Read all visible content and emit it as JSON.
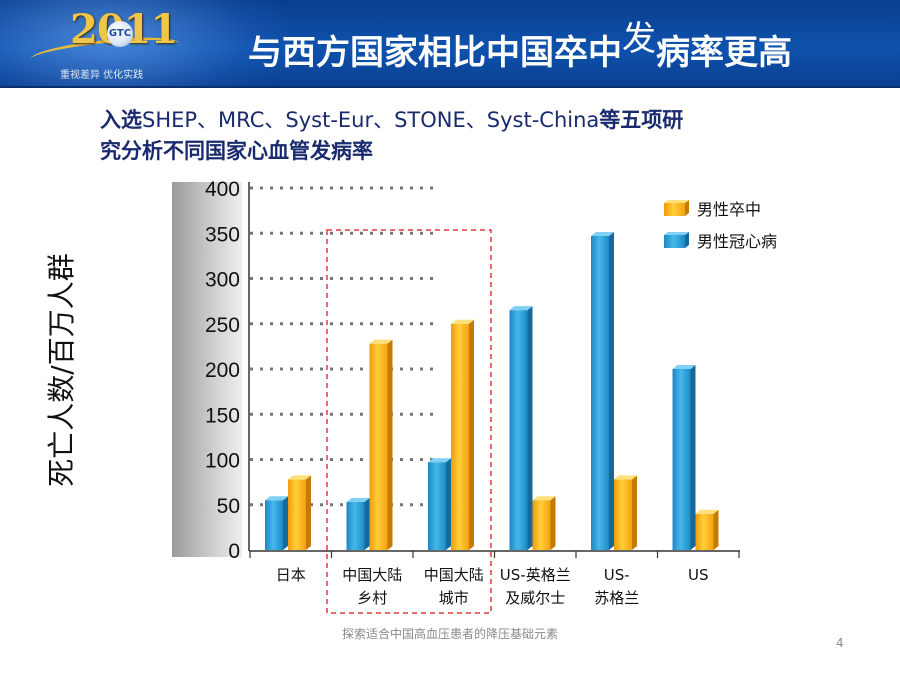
{
  "header": {
    "logo_year": "2011",
    "logo_badge": "GTC",
    "logo_slogan": "重视差异 优化实践",
    "title_before": "与西方国家相比中国卒中",
    "title_super": "发",
    "title_after": "病率更高"
  },
  "subtitle": {
    "line1_pre": "入选",
    "line1_latin": "SHEP、MRC、Syst-Eur、STONE、Syst-China",
    "line1_post": "等五项研",
    "line2": "究分析不同国家心血管发病率"
  },
  "chart_data": {
    "type": "bar",
    "ylabel": "死亡人数/百万人群",
    "ylim": [
      0,
      400
    ],
    "yticks": [
      "0",
      "50",
      "100",
      "150",
      "200",
      "250",
      "300",
      "350",
      "400"
    ],
    "categories": [
      [
        "日本"
      ],
      [
        "中国大陆",
        "乡村"
      ],
      [
        "中国大陆",
        "城市"
      ],
      [
        "US-英格兰",
        "及威尔士"
      ],
      [
        "US-",
        "苏格兰"
      ],
      [
        "US"
      ]
    ],
    "series": [
      {
        "name": "男性冠心病",
        "color": "#2aa3dc",
        "values": [
          55,
          53,
          97,
          265,
          347,
          200
        ]
      },
      {
        "name": "男性卒中",
        "color": "#f5a814",
        "values": [
          78,
          228,
          250,
          55,
          78,
          40
        ]
      }
    ],
    "legend_order": [
      "男性卒中",
      "男性冠心病"
    ],
    "legend_position": "top-right",
    "highlight": "中国大陆 categories enclosed by red dashed box"
  },
  "footer": {
    "text": "探索适合中国高血压患者的降压基础元素",
    "page_number": "4"
  }
}
